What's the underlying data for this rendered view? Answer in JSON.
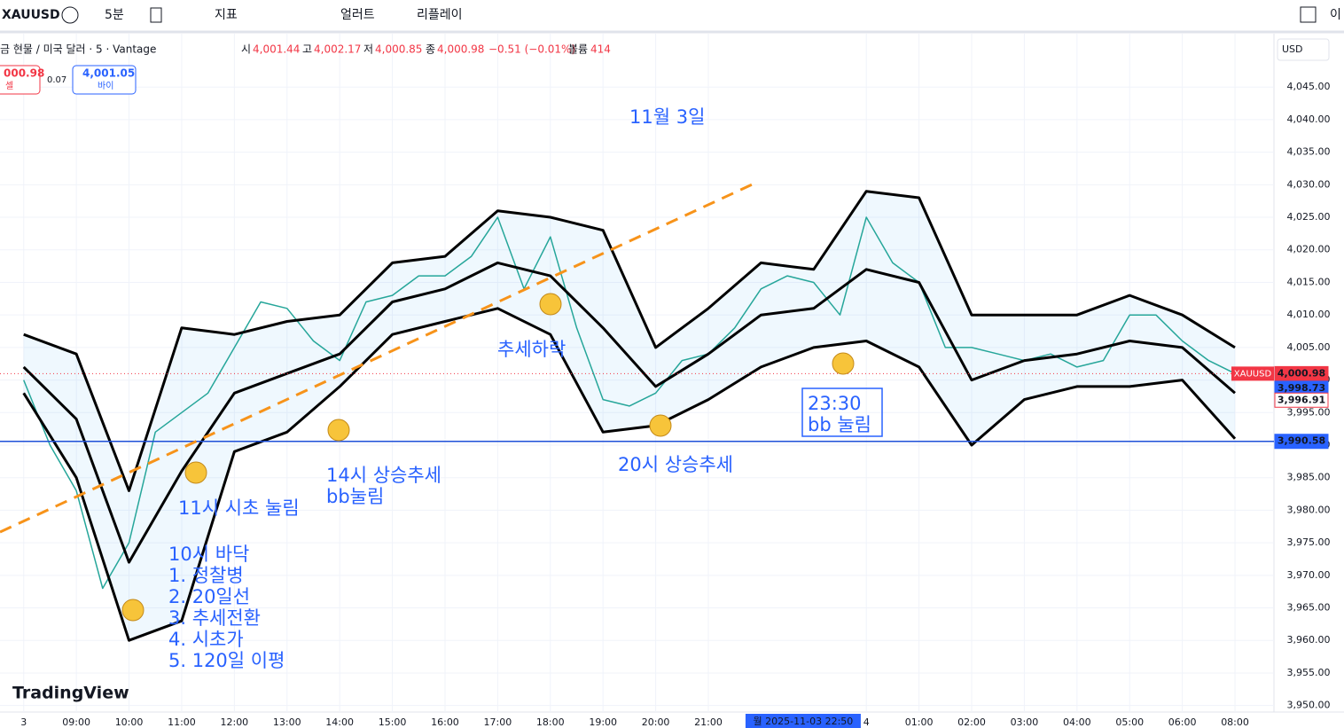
{
  "toolbar": {
    "symbol": "XAUUSD",
    "interval": "5분",
    "indicators": "지표",
    "alert": "얼러트",
    "replay": "리플레이",
    "right_text": "이"
  },
  "legend": {
    "name": "금 현물 / 미국 달러 · 5 · Vantage",
    "open_label": "시",
    "open": "4,001.44",
    "high_label": "고",
    "high": "4,002.17",
    "low_label": "저",
    "low": "4,000.85",
    "close_label": "종",
    "close": "4,000.98",
    "change": "−0.51 (−0.01%)",
    "volume_label": "볼륨",
    "volume": "414",
    "sell_price": "000.98",
    "sell_label": "셀",
    "spread": "0.07",
    "buy_price": "4,001.05",
    "buy_label": "바이",
    "currency": "USD"
  },
  "chart_data": {
    "type": "line",
    "x": [
      0,
      0.5,
      1,
      1.5,
      2,
      2.5,
      3,
      3.5,
      4,
      4.5,
      5,
      5.5,
      6,
      6.5,
      7,
      7.5,
      8,
      8.5,
      9,
      9.5,
      10,
      10.5,
      11,
      11.5,
      12,
      12.5,
      13,
      13.5,
      14,
      14.5,
      15,
      15.5,
      16,
      16.5,
      17,
      17.5,
      18,
      18.5,
      19,
      19.5,
      20,
      20.5,
      21,
      21.5,
      22,
      22.5,
      23
    ],
    "series": [
      {
        "name": "종가",
        "color": "#26a69a",
        "values": [
          4000,
          3990,
          3983,
          3968,
          3975,
          3992,
          3995,
          3998,
          4005,
          4012,
          4011,
          4006,
          4003,
          4012,
          4013,
          4016,
          4016,
          4019,
          4025,
          4014,
          4022,
          4008,
          3997,
          3996,
          3998,
          4003,
          4004,
          4008,
          4014,
          4016,
          4015,
          4010,
          4025,
          4018,
          4015,
          4005,
          4005,
          4004,
          4003,
          4004,
          4002,
          4003,
          4010,
          4010,
          4006,
          4003,
          4001
        ]
      },
      {
        "name": "BB 상단",
        "color": "#000000",
        "x": [
          0,
          1,
          2,
          3,
          4,
          5,
          6,
          7,
          8,
          9,
          10,
          11,
          12,
          13,
          14,
          15,
          16,
          17,
          18,
          19,
          20,
          21,
          22,
          23
        ],
        "values": [
          4007,
          4004,
          3983,
          4008,
          4007,
          4009,
          4010,
          4018,
          4019,
          4026,
          4025,
          4023,
          4005,
          4011,
          4018,
          4017,
          4029,
          4028,
          4010,
          4010,
          4010,
          4013,
          4010,
          4005
        ]
      },
      {
        "name": "BB 중심",
        "color": "#000000",
        "x": [
          0,
          1,
          2,
          3,
          4,
          5,
          6,
          7,
          8,
          9,
          10,
          11,
          12,
          13,
          14,
          15,
          16,
          17,
          18,
          19,
          20,
          21,
          22,
          23
        ],
        "values": [
          4002,
          3994,
          3972,
          3986,
          3998,
          4001,
          4004,
          4012,
          4014,
          4018,
          4016,
          4008,
          3999,
          4004,
          4010,
          4011,
          4017,
          4015,
          4000,
          4003,
          4004,
          4006,
          4005,
          3998
        ]
      },
      {
        "name": "BB 하단",
        "color": "#000000",
        "x": [
          0,
          1,
          2,
          3,
          4,
          5,
          6,
          7,
          8,
          9,
          10,
          11,
          12,
          13,
          14,
          15,
          16,
          17,
          18,
          19,
          20,
          21,
          22,
          23
        ],
        "values": [
          3998,
          3985,
          3960,
          3963,
          3989,
          3992,
          3999,
          4007,
          4009,
          4011,
          4007,
          3992,
          3993,
          3997,
          4002,
          4005,
          4006,
          4002,
          3990,
          3997,
          3999,
          3999,
          4000,
          3991
        ]
      }
    ],
    "xlim": [
      -0.45,
      23.74
    ],
    "ylim": [
      3949,
      4053.2
    ],
    "xticks": [
      {
        "value": 0,
        "label": "3"
      },
      {
        "value": 1,
        "label": "09:00"
      },
      {
        "value": 2,
        "label": "10:00"
      },
      {
        "value": 3,
        "label": "11:00"
      },
      {
        "value": 4,
        "label": "12:00"
      },
      {
        "value": 5,
        "label": "13:00"
      },
      {
        "value": 6,
        "label": "14:00"
      },
      {
        "value": 7,
        "label": "15:00"
      },
      {
        "value": 8,
        "label": "16:00"
      },
      {
        "value": 9,
        "label": "17:00"
      },
      {
        "value": 10,
        "label": "18:00"
      },
      {
        "value": 11,
        "label": "19:00"
      },
      {
        "value": 12,
        "label": "20:00"
      },
      {
        "value": 13,
        "label": "21:00"
      },
      {
        "value": 16,
        "label": "4"
      },
      {
        "value": 17,
        "label": "01:00"
      },
      {
        "value": 18,
        "label": "02:00"
      },
      {
        "value": 19,
        "label": "03:00"
      },
      {
        "value": 20,
        "label": "04:00"
      },
      {
        "value": 21,
        "label": "05:00"
      },
      {
        "value": 22,
        "label": "06:00"
      },
      {
        "value": 23,
        "label": "08:00"
      }
    ],
    "cursor_time": {
      "value": 14.8,
      "label": "월 2025-11-03   22:50"
    },
    "yticks": [
      {
        "value": 4045,
        "label": "4,045.00"
      },
      {
        "value": 4040,
        "label": "4,040.00"
      },
      {
        "value": 4035,
        "label": "4,035.00"
      },
      {
        "value": 4030,
        "label": "4,030.00"
      },
      {
        "value": 4025,
        "label": "4,025.00"
      },
      {
        "value": 4020,
        "label": "4,020.00"
      },
      {
        "value": 4015,
        "label": "4,015.00"
      },
      {
        "value": 4010,
        "label": "4,010.00"
      },
      {
        "value": 4005,
        "label": "4,005.00"
      },
      {
        "value": 4000,
        "label": "4,000.00"
      },
      {
        "value": 3995,
        "label": "3,995.00"
      },
      {
        "value": 3990,
        "label": "3,990.00"
      },
      {
        "value": 3985,
        "label": "3,985.00"
      },
      {
        "value": 3980,
        "label": "3,980.00"
      },
      {
        "value": 3975,
        "label": "3,975.00"
      },
      {
        "value": 3970,
        "label": "3,970.00"
      },
      {
        "value": 3965,
        "label": "3,965.00"
      },
      {
        "value": 3960,
        "label": "3,960.00"
      },
      {
        "value": 3955,
        "label": "3,955.00"
      },
      {
        "value": 3950,
        "label": "3,950.00"
      }
    ],
    "grid": true,
    "symbol_tag": "XAUUSD",
    "price_labels": [
      {
        "value": 4000.98,
        "label": "4,000.98",
        "color": "#f23645"
      },
      {
        "value": 3998.73,
        "label": "3,998.73",
        "color": "#2962ff"
      },
      {
        "value": 3996.91,
        "label": "3,996.91",
        "color": "#ffffff"
      },
      {
        "value": 3990.58,
        "label": "3,990.58",
        "color": "#2962ff"
      }
    ],
    "horizontal_line": {
      "value": 3990.58,
      "color": "#1e4fd8"
    }
  },
  "annotations": [
    {
      "lines": [
        "11월 3일"
      ]
    },
    {
      "lines": [
        "추세하락"
      ]
    },
    {
      "lines": [
        "23:30",
        "bb 눌림"
      ]
    },
    {
      "lines": [
        "14시 상승추세",
        "bb눌림"
      ]
    },
    {
      "lines": [
        "20시 상승추세"
      ]
    },
    {
      "lines": [
        "11시 시초 눌림"
      ]
    },
    {
      "lines": [
        "10시 바닥",
        "1. 정찰병",
        "2. 20일선",
        "3. 추세전환",
        "4. 시초가",
        "5. 120일 이평"
      ]
    }
  ],
  "brand": "TradingView"
}
